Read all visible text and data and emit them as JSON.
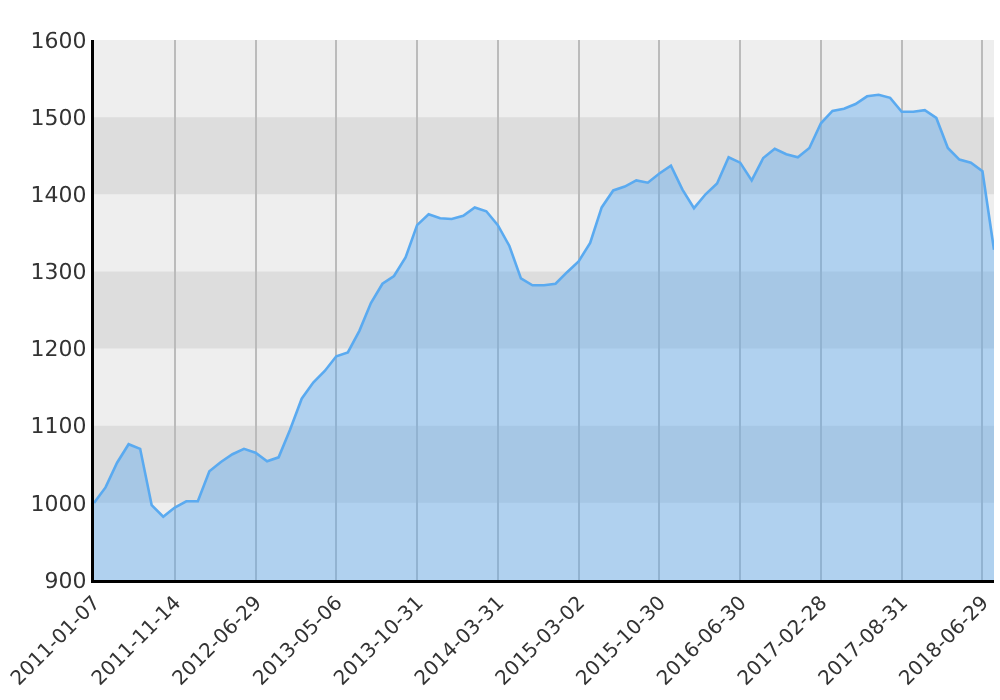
{
  "chart_data": {
    "type": "area",
    "categories": [
      "2011-01-07",
      null,
      null,
      null,
      null,
      null,
      null,
      "2011-11-14",
      null,
      null,
      null,
      null,
      null,
      null,
      "2012-06-29",
      null,
      null,
      null,
      null,
      null,
      null,
      "2013-05-06",
      null,
      null,
      null,
      null,
      null,
      null,
      "2013-10-31",
      null,
      null,
      null,
      null,
      null,
      null,
      "2014-03-31",
      null,
      null,
      null,
      null,
      null,
      null,
      "2015-03-02",
      null,
      null,
      null,
      null,
      null,
      null,
      "2015-10-30",
      null,
      null,
      null,
      null,
      null,
      null,
      "2016-06-30",
      null,
      null,
      null,
      null,
      null,
      null,
      "2017-02-28",
      null,
      null,
      null,
      null,
      null,
      null,
      "2017-08-31",
      null,
      null,
      null,
      null,
      null,
      null,
      "2018-06-29",
      null
    ],
    "series": [
      {
        "color": "#5aaaf0",
        "values": [
          1000,
          1020,
          1052,
          1076,
          1070,
          997,
          982,
          994,
          1002,
          1002,
          1041,
          1053,
          1063,
          1070,
          1065,
          1054,
          1059,
          1095,
          1135,
          1156,
          1171,
          1190,
          1195,
          1223,
          1259,
          1284,
          1294,
          1318,
          1360,
          1374,
          1369,
          1368,
          1372,
          1383,
          1378,
          1360,
          1333,
          1291,
          1282,
          1282,
          1284,
          1299,
          1313,
          1337,
          1383,
          1405,
          1410,
          1418,
          1415,
          1427,
          1437,
          1406,
          1382,
          1400,
          1414,
          1448,
          1441,
          1418,
          1447,
          1459,
          1452,
          1448,
          1460,
          1492,
          1508,
          1511,
          1517,
          1527,
          1529,
          1525,
          1507,
          1507,
          1509,
          1499,
          1460,
          1445,
          1441,
          1430,
          1328
        ]
      }
    ],
    "ylim": [
      900,
      1600
    ],
    "yticks": [
      900,
      1000,
      1100,
      1200,
      1300,
      1400,
      1500,
      1600
    ],
    "grid": "x",
    "bands": [
      {
        "axis": "y",
        "from": 1000,
        "to": 1100,
        "color": "#dddddd"
      },
      {
        "axis": "y",
        "from": 1200,
        "to": 1300,
        "color": "#dddddd"
      },
      {
        "axis": "y",
        "from": 1400,
        "to": 1500,
        "color": "#dddddd"
      }
    ]
  }
}
